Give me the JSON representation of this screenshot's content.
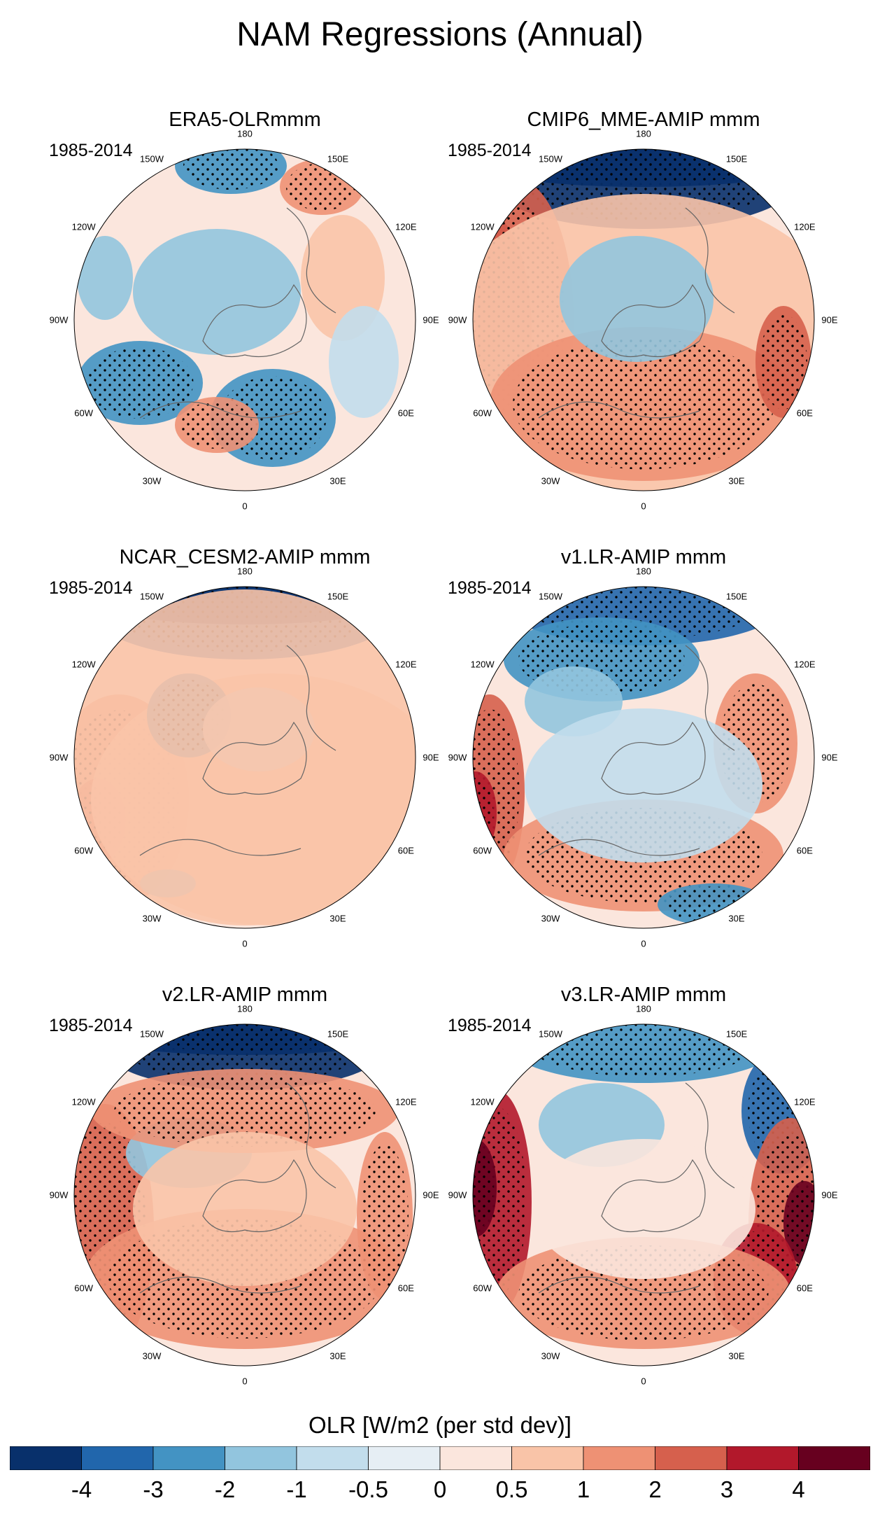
{
  "title": "NAM Regressions (Annual)",
  "panels": [
    {
      "title": "ERA5-OLRmmm",
      "period": "1985-2014"
    },
    {
      "title": "CMIP6_MME-AMIP  mmm",
      "period": "1985-2014"
    },
    {
      "title": "NCAR_CESM2-AMIP  mmm",
      "period": "1985-2014"
    },
    {
      "title": "v1.LR-AMIP  mmm",
      "period": "1985-2014"
    },
    {
      "title": "v2.LR-AMIP  mmm",
      "period": "1985-2014"
    },
    {
      "title": "v3.LR-AMIP  mmm",
      "period": "1985-2014"
    }
  ],
  "longitude_labels": [
    "180",
    "150E",
    "120E",
    "90E",
    "60E",
    "30E",
    "0",
    "30W",
    "60W",
    "90W",
    "120W",
    "150W"
  ],
  "colorbar": {
    "title": "OLR [W/m2 (per std dev)]",
    "tick_labels": [
      "-4",
      "-3",
      "-2",
      "-1",
      "-0.5",
      "0",
      "0.5",
      "1",
      "2",
      "3",
      "4"
    ],
    "colors": [
      "#08306b",
      "#2166ac",
      "#4393c3",
      "#92c5de",
      "#c2ddec",
      "#e6eef4",
      "#fbe6dd",
      "#f9c4a8",
      "#ee9174",
      "#d6604d",
      "#b2182b",
      "#67001f"
    ]
  }
}
